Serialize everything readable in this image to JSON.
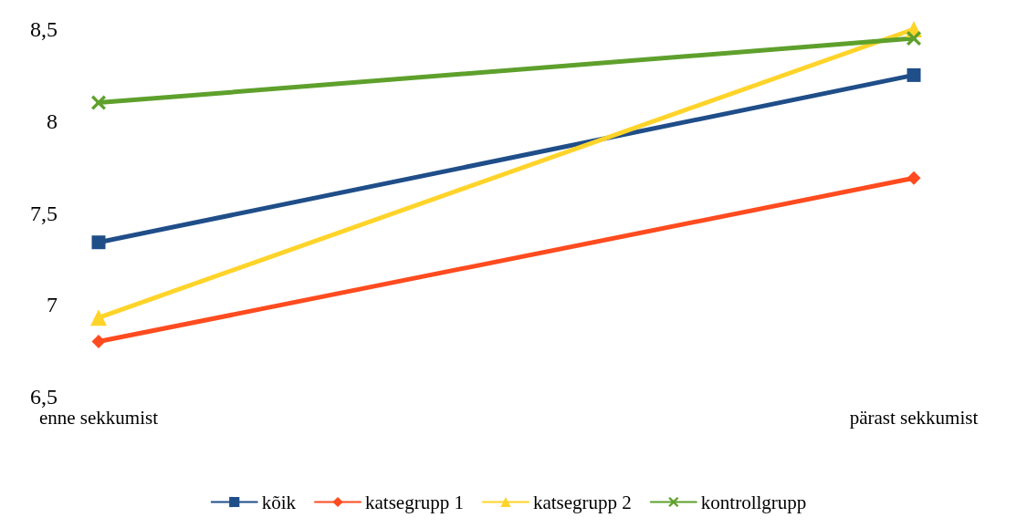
{
  "chart_data": {
    "type": "line",
    "categories": [
      "enne sekkumist",
      "pärast sekkumist"
    ],
    "series": [
      {
        "name": "kõik",
        "color": "#1f4e89",
        "marker": "square",
        "values": [
          7.34,
          8.25
        ]
      },
      {
        "name": "katsegrupp 1",
        "color": "#ff4b1f",
        "marker": "diamond",
        "values": [
          6.8,
          7.69
        ]
      },
      {
        "name": "katsegrupp 2",
        "color": "#ffd42a",
        "marker": "triangle",
        "values": [
          6.93,
          8.5
        ]
      },
      {
        "name": "kontrollgrupp",
        "color": "#5ea02c",
        "marker": "cross",
        "values": [
          8.1,
          8.45
        ]
      }
    ],
    "ylim": [
      6.5,
      8.5
    ],
    "yticks": [
      {
        "value": 6.5,
        "label": "6,5"
      },
      {
        "value": 7,
        "label": "7"
      },
      {
        "value": 7.5,
        "label": "7,5"
      },
      {
        "value": 8,
        "label": "8"
      },
      {
        "value": 8.5,
        "label": "8,5"
      }
    ],
    "grid": false,
    "legend": "bottom"
  }
}
